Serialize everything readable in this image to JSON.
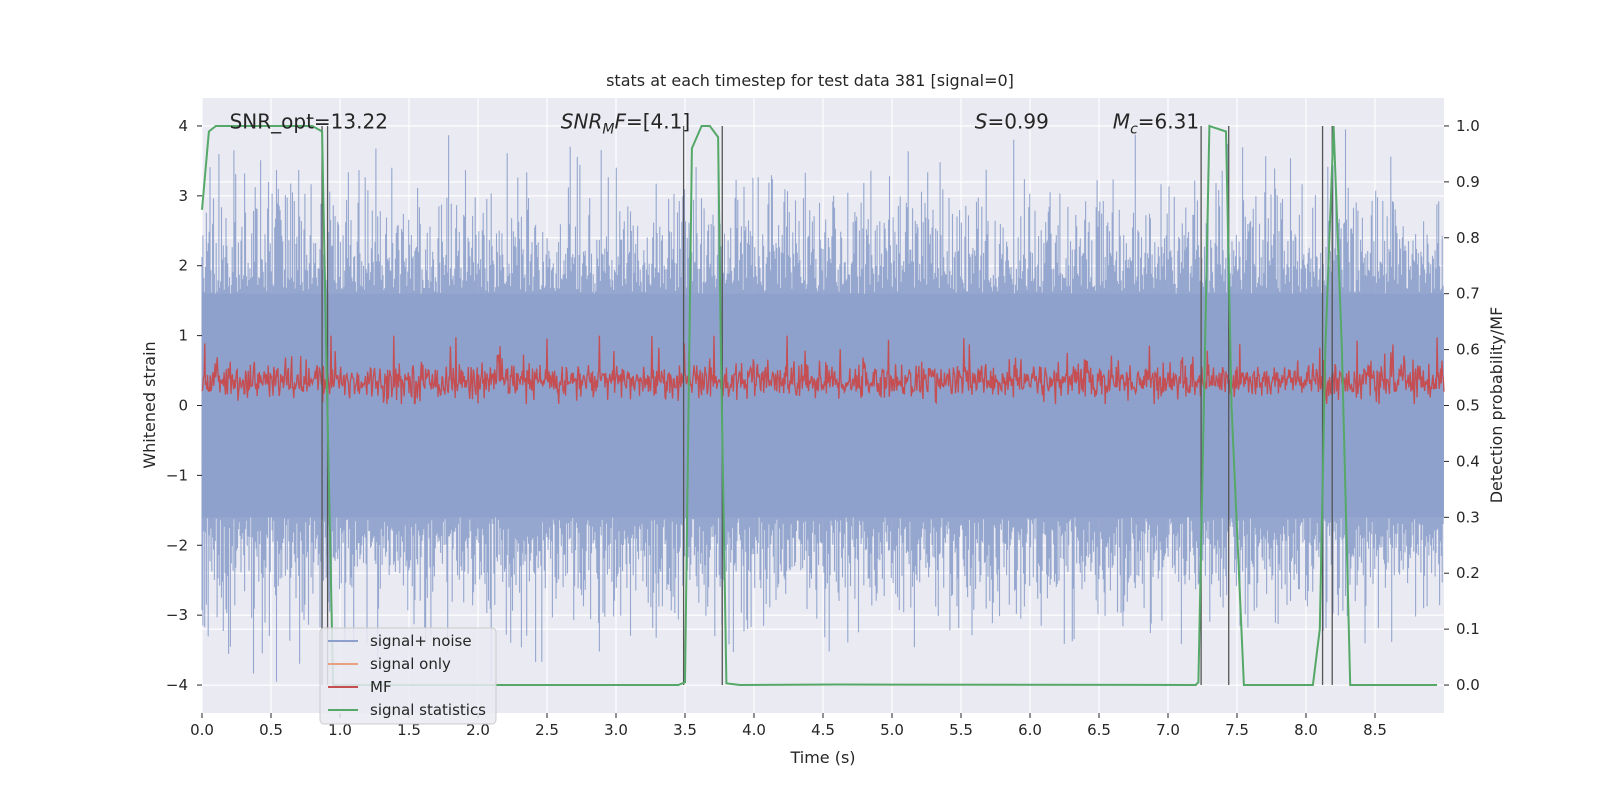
{
  "chart_data": {
    "type": "line",
    "title": "stats at each timestep for test data 381 [signal=0]",
    "xlabel": "Time (s)",
    "ylabel": "Whitened strain",
    "y2label": "Detection probability/MF",
    "xlim": [
      0.0,
      9.0
    ],
    "ylim": [
      -4.4,
      4.4
    ],
    "y2lim": [
      -0.05,
      1.05
    ],
    "xticks": [
      0.0,
      0.5,
      1.0,
      1.5,
      2.0,
      2.5,
      3.0,
      3.5,
      4.0,
      4.5,
      5.0,
      5.5,
      6.0,
      6.5,
      7.0,
      7.5,
      8.0,
      8.5
    ],
    "xtick_labels": [
      "0.0",
      "0.5",
      "1.0",
      "1.5",
      "2.0",
      "2.5",
      "3.0",
      "3.5",
      "4.0",
      "4.5",
      "5.0",
      "5.5",
      "6.0",
      "6.5",
      "7.0",
      "7.5",
      "8.0",
      "8.5"
    ],
    "yticks": [
      -4,
      -3,
      -2,
      -1,
      0,
      1,
      2,
      3,
      4
    ],
    "ytick_labels": [
      "−4",
      "−3",
      "−2",
      "−1",
      "0",
      "1",
      "2",
      "3",
      "4"
    ],
    "y2ticks": [
      0.0,
      0.1,
      0.2,
      0.3,
      0.4,
      0.5,
      0.6,
      0.7,
      0.8,
      0.9,
      1.0
    ],
    "y2tick_labels": [
      "0.0",
      "0.1",
      "0.2",
      "0.3",
      "0.4",
      "0.5",
      "0.6",
      "0.7",
      "0.8",
      "0.9",
      "1.0"
    ],
    "annotations": {
      "snr_opt": "SNR_opt=13.22",
      "snr_mf_base": "SNR",
      "snr_mf_sub": "M",
      "snr_mf_rest": "F=[4.1]",
      "s_italic": "S",
      "s_rest": "=0.99",
      "mc_base": "M",
      "mc_sub": "c",
      "mc_rest": "=6.31",
      "snr_opt_x": 0.2,
      "snr_mf_x": 2.6,
      "s_x": 5.6,
      "mc_x": 6.6,
      "annot_y": 4.05
    },
    "legend": {
      "location": "lower-left",
      "entries": [
        {
          "label": "signal+ noise",
          "color": "#8da0cb"
        },
        {
          "label": "signal only",
          "color": "#e8a07f"
        },
        {
          "label": "MF",
          "color": "#c44e52"
        },
        {
          "label": "signal statistics",
          "color": "#55a868"
        }
      ]
    },
    "series": [
      {
        "name": "signal statistics",
        "axis": "right",
        "color": "#55a868",
        "points": [
          [
            0.0,
            0.85
          ],
          [
            0.05,
            0.99
          ],
          [
            0.1,
            1.0
          ],
          [
            0.5,
            1.0
          ],
          [
            0.8,
            1.0
          ],
          [
            0.87,
            0.99
          ],
          [
            0.9,
            0.6
          ],
          [
            0.95,
            0.0
          ],
          [
            1.0,
            0.0
          ],
          [
            3.45,
            0.0
          ],
          [
            3.5,
            0.005
          ],
          [
            3.55,
            0.96
          ],
          [
            3.62,
            1.0
          ],
          [
            3.68,
            1.0
          ],
          [
            3.74,
            0.98
          ],
          [
            3.76,
            0.6
          ],
          [
            3.8,
            0.003
          ],
          [
            3.9,
            0.0
          ],
          [
            4.6,
            0.001
          ],
          [
            7.2,
            0.0
          ],
          [
            7.22,
            0.005
          ],
          [
            7.3,
            1.0
          ],
          [
            7.42,
            0.99
          ],
          [
            7.46,
            0.5
          ],
          [
            7.55,
            0.0
          ],
          [
            8.05,
            0.0
          ],
          [
            8.1,
            0.1
          ],
          [
            8.14,
            0.6
          ],
          [
            8.2,
            1.0
          ],
          [
            8.26,
            0.6
          ],
          [
            8.32,
            0.0
          ],
          [
            8.95,
            0.0
          ]
        ]
      }
    ],
    "vertical_lines": [
      0.87,
      0.91,
      3.49,
      3.77,
      7.24,
      7.44,
      8.12,
      8.19
    ],
    "noise": {
      "name": "signal+ noise",
      "color": "#8da0cb",
      "band": 1.6
    },
    "mf": {
      "name": "MF",
      "color": "#c44e52",
      "center": 0.35
    }
  }
}
